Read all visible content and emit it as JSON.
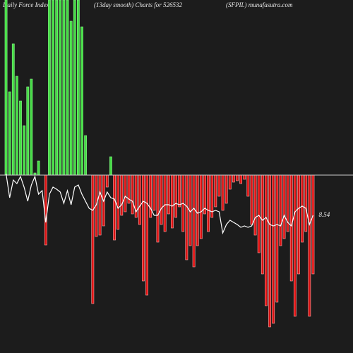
{
  "chart_data": {
    "type": "bar",
    "title": "Daily Force  Index",
    "subtitle": "(13day smooth) Charts for 526532",
    "source": "(SFPIL) munafasutra.com",
    "values": [
      248,
      118,
      186,
      140,
      105,
      70,
      125,
      136,
      3,
      20,
      0,
      -99,
      248,
      248,
      248,
      248,
      248,
      248,
      218,
      248,
      248,
      210,
      56,
      0,
      -182,
      -87,
      -85,
      -72,
      -17,
      26,
      -92,
      -77,
      -57,
      -52,
      -40,
      -55,
      -60,
      -70,
      -150,
      -170,
      -60,
      -50,
      -95,
      -70,
      -80,
      -55,
      -75,
      -60,
      -45,
      -80,
      -120,
      -100,
      -130,
      -100,
      -90,
      -55,
      -80,
      -60,
      -45,
      -30,
      -50,
      -40,
      -20,
      -10,
      -8,
      -12,
      -6,
      -30,
      -70,
      -85,
      -110,
      -140,
      -185,
      -215,
      -210,
      -180,
      -100,
      -90,
      -80,
      -150,
      -200,
      -140,
      -95,
      -80,
      -200,
      -140
    ],
    "positive_color": "#44dd44",
    "negative_color": "#dd1111",
    "line": {
      "color": "#ffffff",
      "values": [
        2,
        -32,
        -7,
        -12,
        -2,
        -17,
        -37,
        -14,
        -2,
        -27,
        -22,
        -67,
        -27,
        -17,
        -20,
        -24,
        -40,
        -22,
        -42,
        -17,
        -14,
        -27,
        -37,
        -47,
        -50,
        -42,
        -24,
        -37,
        -24,
        -32,
        -34,
        -47,
        -42,
        -30,
        -34,
        -37,
        -52,
        -44,
        -37,
        -40,
        -47,
        -57,
        -57,
        -47,
        -42,
        -42,
        -44,
        -40,
        -42,
        -40,
        -44,
        -52,
        -47,
        -54,
        -52,
        -47,
        -50,
        -52,
        -50,
        -52,
        -82,
        -70,
        -64,
        -67,
        -70,
        -74,
        -72,
        -74,
        -72,
        -60,
        -57,
        -64,
        -60,
        -70,
        -72,
        -70,
        -72,
        -57,
        -67,
        -72,
        -52,
        -47,
        -44,
        -47,
        -70,
        -57
      ]
    },
    "last_label": "8.54",
    "ylim": [
      -252,
      248
    ]
  }
}
